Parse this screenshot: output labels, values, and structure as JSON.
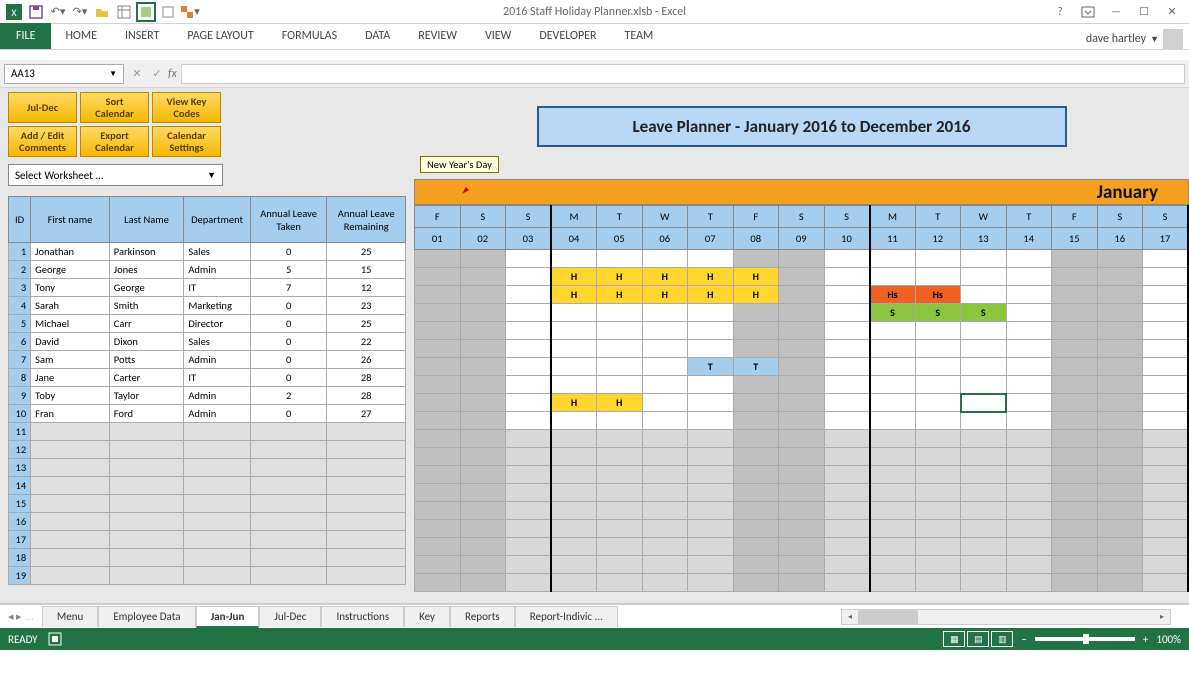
{
  "window": {
    "title": "2016 Staff Holiday Planner.xlsb - Excel",
    "user": "dave hartley"
  },
  "ribbon_tabs": [
    "HOME",
    "INSERT",
    "PAGE LAYOUT",
    "FORMULAS",
    "DATA",
    "REVIEW",
    "VIEW",
    "DEVELOPER",
    "TEAM"
  ],
  "file_tab": "FILE",
  "name_box": "AA13",
  "fx": "fx",
  "buttons": {
    "r1": [
      "Jul-Dec",
      "Sort Calendar",
      "View Key Codes"
    ],
    "r2": [
      "Add / Edit Comments",
      "Export Calendar",
      "Calendar Settings"
    ]
  },
  "select_worksheet": "Select Worksheet ...",
  "emp_headers": [
    "ID",
    "First name",
    "Last Name",
    "Department",
    "Annual Leave Taken",
    "Annual Leave Remaining"
  ],
  "emp_col_widths": [
    22,
    78,
    74,
    66,
    76,
    78
  ],
  "employees": [
    {
      "id": 1,
      "first": "Jonathan",
      "last": "Parkinson",
      "dept": "Sales",
      "taken": 0,
      "rem": 25
    },
    {
      "id": 2,
      "first": "George",
      "last": "Jones",
      "dept": "Admin",
      "taken": 5,
      "rem": 15
    },
    {
      "id": 3,
      "first": "Tony",
      "last": "George",
      "dept": "IT",
      "taken": 7,
      "rem": 12
    },
    {
      "id": 4,
      "first": "Sarah",
      "last": "Smith",
      "dept": "Marketing",
      "taken": 0,
      "rem": 23
    },
    {
      "id": 5,
      "first": "Michael",
      "last": "Carr",
      "dept": "Director",
      "taken": 0,
      "rem": 25
    },
    {
      "id": 6,
      "first": "David",
      "last": "Dixon",
      "dept": "Sales",
      "taken": 0,
      "rem": 22
    },
    {
      "id": 7,
      "first": "Sam",
      "last": "Potts",
      "dept": "Admin",
      "taken": 0,
      "rem": 26
    },
    {
      "id": 8,
      "first": "Jane",
      "last": "Carter",
      "dept": "IT",
      "taken": 0,
      "rem": 28
    },
    {
      "id": 9,
      "first": "Toby",
      "last": "Taylor",
      "dept": "Admin",
      "taken": 2,
      "rem": 28
    },
    {
      "id": 10,
      "first": "Fran",
      "last": "Ford",
      "dept": "Admin",
      "taken": 0,
      "rem": 27
    }
  ],
  "empty_rows": [
    11,
    12,
    13,
    14,
    15,
    16,
    17,
    18,
    19
  ],
  "planner_title": "Leave Planner - January 2016 to December 2016",
  "tooltip": "New Year's Day",
  "month": "January",
  "day_letters": [
    "F",
    "S",
    "S",
    "M",
    "T",
    "W",
    "T",
    "F",
    "S",
    "S",
    "M",
    "T",
    "W",
    "T",
    "F",
    "S",
    "S"
  ],
  "day_nums": [
    "01",
    "02",
    "03",
    "04",
    "05",
    "06",
    "07",
    "08",
    "09",
    "10",
    "11",
    "12",
    "13",
    "14",
    "15",
    "16",
    "17"
  ],
  "weekend_cols": [
    1,
    2,
    8,
    9,
    15,
    16
  ],
  "thick_right_cols": [
    2,
    9,
    16
  ],
  "leave_cells": {
    "2": {
      "4": "H",
      "5": "H",
      "6": "H",
      "7": "H",
      "8": "H"
    },
    "3": {
      "4": "H",
      "5": "H",
      "6": "H",
      "7": "H",
      "8": "H",
      "11": "Hs",
      "12": "Hs"
    },
    "4": {
      "11": "S",
      "12": "S",
      "13": "S"
    },
    "7": {
      "7": "T",
      "8": "T"
    },
    "9": {
      "4": "H",
      "5": "H"
    }
  },
  "leave_colors": {
    "H": "#ffd52e",
    "Hs": "#f06020",
    "S": "#8cc640",
    "T": "#a5ceee"
  },
  "selected_cell": {
    "row": 9,
    "col": 13
  },
  "sheet_tabs": [
    "Menu",
    "Employee Data",
    "Jan-Jun",
    "Jul-Dec",
    "Instructions",
    "Key",
    "Reports",
    "Report-Indivic ..."
  ],
  "active_sheet": 2,
  "status": "READY",
  "zoom": "100%",
  "colors": {
    "excel_green": "#217346",
    "header_blue": "#a5ceee",
    "month_orange": "#f5a020",
    "title_bg": "#b8d8f5",
    "gold_btn_top": "#ffd966",
    "gold_btn_bot": "#f5b800"
  }
}
